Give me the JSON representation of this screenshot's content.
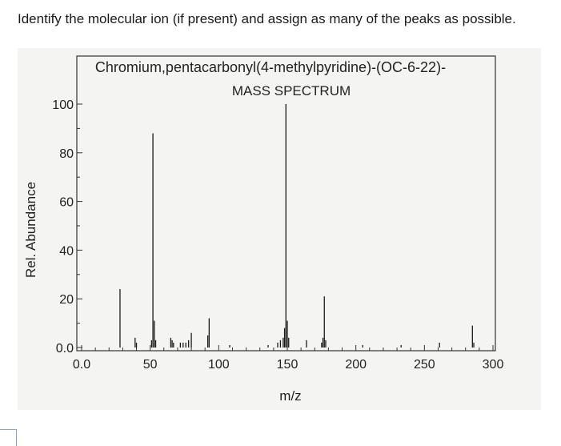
{
  "question": "Identify the molecular ion (if present) and assign as many of the peaks as possible.",
  "chart_data": {
    "type": "bar",
    "title": "Chromium,pentacarbonyl(4-methylpyridine)-(OC-6-22)-",
    "subtitle": "MASS SPECTRUM",
    "xlabel": "m/z",
    "ylabel": "Rel. Abundance",
    "xlim": [
      0,
      300
    ],
    "ylim": [
      0,
      100
    ],
    "x_ticks": [
      "0.0",
      "50",
      "100",
      "150",
      "200",
      "250",
      "300"
    ],
    "y_ticks": [
      "0.0",
      "20",
      "40",
      "60",
      "80",
      "100"
    ],
    "grid": false,
    "peaks": [
      {
        "mz": 28,
        "abundance": 24
      },
      {
        "mz": 39,
        "abundance": 4
      },
      {
        "mz": 40,
        "abundance": 2
      },
      {
        "mz": 51,
        "abundance": 3
      },
      {
        "mz": 52,
        "abundance": 88
      },
      {
        "mz": 53,
        "abundance": 11
      },
      {
        "mz": 54,
        "abundance": 3
      },
      {
        "mz": 65,
        "abundance": 4
      },
      {
        "mz": 66,
        "abundance": 3
      },
      {
        "mz": 67,
        "abundance": 2
      },
      {
        "mz": 72,
        "abundance": 2
      },
      {
        "mz": 74,
        "abundance": 2
      },
      {
        "mz": 76,
        "abundance": 2
      },
      {
        "mz": 78,
        "abundance": 3
      },
      {
        "mz": 80,
        "abundance": 6
      },
      {
        "mz": 92,
        "abundance": 5
      },
      {
        "mz": 93,
        "abundance": 12
      },
      {
        "mz": 108,
        "abundance": 1
      },
      {
        "mz": 136,
        "abundance": 1
      },
      {
        "mz": 143,
        "abundance": 2
      },
      {
        "mz": 145,
        "abundance": 3
      },
      {
        "mz": 147,
        "abundance": 4
      },
      {
        "mz": 148,
        "abundance": 8
      },
      {
        "mz": 149,
        "abundance": 100
      },
      {
        "mz": 150,
        "abundance": 11
      },
      {
        "mz": 151,
        "abundance": 4
      },
      {
        "mz": 164,
        "abundance": 3
      },
      {
        "mz": 175,
        "abundance": 2
      },
      {
        "mz": 176,
        "abundance": 4
      },
      {
        "mz": 177,
        "abundance": 21
      },
      {
        "mz": 178,
        "abundance": 3
      },
      {
        "mz": 205,
        "abundance": 1
      },
      {
        "mz": 233,
        "abundance": 1
      },
      {
        "mz": 261,
        "abundance": 2
      },
      {
        "mz": 285,
        "abundance": 9
      },
      {
        "mz": 286,
        "abundance": 2
      }
    ]
  }
}
